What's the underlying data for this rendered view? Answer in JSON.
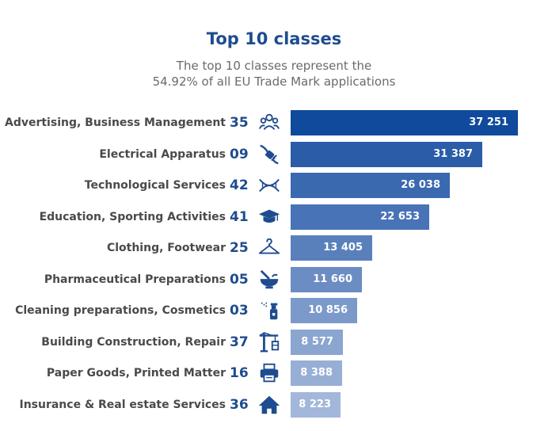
{
  "chart_data": {
    "type": "bar",
    "orientation": "horizontal",
    "title": "Top 10 classes",
    "subtitle": [
      "The top 10 classes represent the",
      "54.92% of all EU Trade Mark applications"
    ],
    "categories": [
      "Advertising, Business Management",
      "Electrical Apparatus",
      "Technological Services",
      "Education, Sporting Activities",
      "Clothing, Footwear",
      "Pharmaceutical Preparations",
      "Cleaning preparations, Cosmetics",
      "Building Construction, Repair",
      "Paper Goods, Printed Matter",
      "Insurance & Real estate Services"
    ],
    "codes": [
      "35",
      "09",
      "42",
      "41",
      "25",
      "05",
      "03",
      "37",
      "16",
      "36"
    ],
    "icons": [
      "people-icon",
      "plug-icon",
      "dna-icon",
      "graduation-cap-icon",
      "hanger-icon",
      "mortar-pestle-icon",
      "spray-bottle-icon",
      "crane-icon",
      "printer-icon",
      "house-icon"
    ],
    "values": [
      37251,
      31387,
      26038,
      22653,
      13405,
      11660,
      10856,
      8577,
      8388,
      8223
    ],
    "value_labels": [
      "37 251",
      "31 387",
      "26 038",
      "22 653",
      "13 405",
      "11 660",
      "10 856",
      "8 577",
      "8 388",
      "8 223"
    ],
    "xlim": [
      0,
      37251
    ],
    "grid": false,
    "legend": "none",
    "colors": [
      "#0f4a9c",
      "#2a5ca8",
      "#3a69b0",
      "#4873b6",
      "#5a80bc",
      "#6b8dc3",
      "#7b9aca",
      "#8aa5d0",
      "#97afd5",
      "#a2b7d9"
    ],
    "label_color": "#4a4a4a",
    "code_color": "#1e4c8f",
    "title_color": "#1e4c8f"
  }
}
